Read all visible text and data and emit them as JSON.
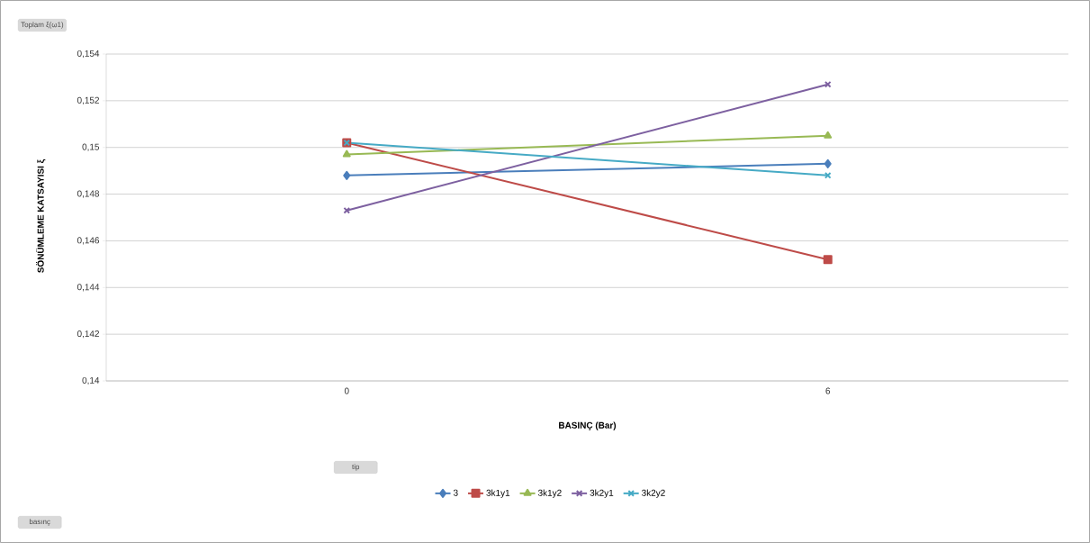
{
  "chart_data": {
    "type": "line",
    "xlabel": "BASINÇ (Bar)",
    "ylabel": "SÖNÜMLEME KATSAYISI ξ",
    "legend_title": "tip",
    "annotations": [
      "Toplam ξ(ω1)",
      "basınç"
    ],
    "categories": [
      "0",
      "6"
    ],
    "series": [
      {
        "name": "3",
        "color": "#4a7ebb",
        "marker": "diamond",
        "values": [
          0.1488,
          0.1493
        ]
      },
      {
        "name": "3k1y1",
        "color": "#be4b48",
        "marker": "square",
        "values": [
          0.1502,
          0.1452
        ]
      },
      {
        "name": "3k1y2",
        "color": "#98b954",
        "marker": "triangle",
        "values": [
          0.1497,
          0.1505
        ]
      },
      {
        "name": "3k2y1",
        "color": "#7d60a0",
        "marker": "cross",
        "values": [
          0.1473,
          0.1527
        ]
      },
      {
        "name": "3k2y2",
        "color": "#46aac5",
        "marker": "cross",
        "values": [
          0.1502,
          0.1488
        ]
      }
    ],
    "ylim": [
      0.14,
      0.154
    ],
    "yticks": [
      {
        "value": 0.14,
        "label": "0,14"
      },
      {
        "value": 0.142,
        "label": "0,142"
      },
      {
        "value": 0.144,
        "label": "0,144"
      },
      {
        "value": 0.146,
        "label": "0,146"
      },
      {
        "value": 0.148,
        "label": "0,148"
      },
      {
        "value": 0.15,
        "label": "0,15"
      },
      {
        "value": 0.152,
        "label": "0,152"
      },
      {
        "value": 0.154,
        "label": "0,154"
      }
    ],
    "grid": "y",
    "legend": "bottom",
    "line_style": "solid"
  }
}
